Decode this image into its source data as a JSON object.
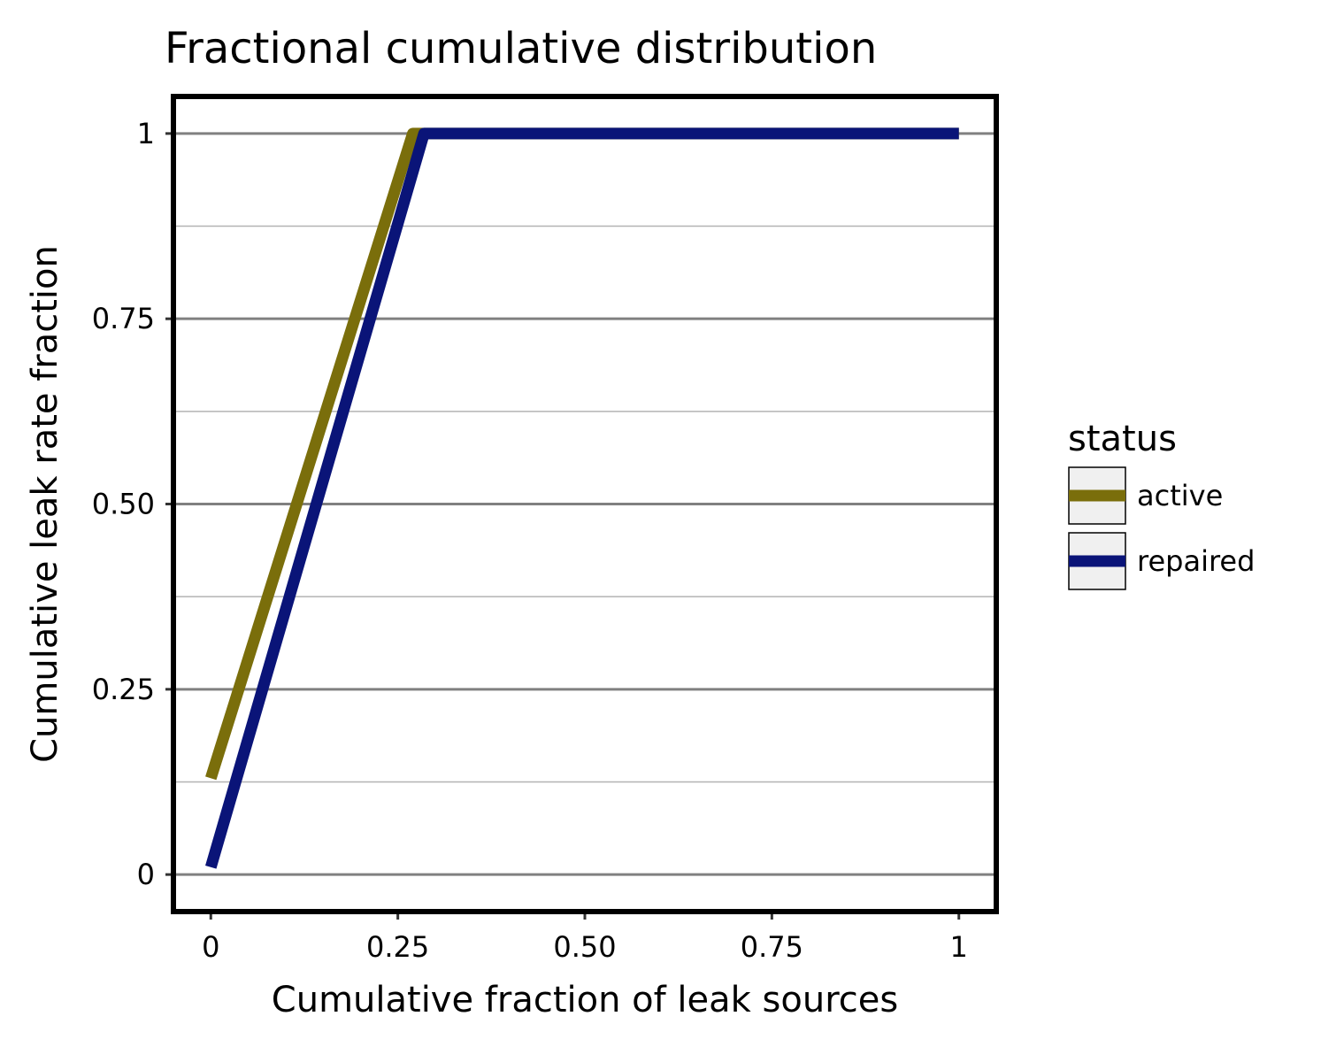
{
  "chart_data": {
    "type": "line",
    "title": "Fractional cumulative distribution",
    "xlabel": "Cumulative fraction of leak sources",
    "ylabel": "Cumulative leak rate fraction",
    "xlim": [
      -0.05,
      1.05
    ],
    "ylim": [
      -0.05,
      1.05
    ],
    "x_ticks": [
      0,
      0.25,
      0.5,
      0.75,
      1
    ],
    "x_tick_labels": [
      "0",
      "0.25",
      "0.50",
      "0.75",
      "1"
    ],
    "y_ticks": [
      0,
      0.25,
      0.5,
      0.75,
      1
    ],
    "y_tick_labels": [
      "0",
      "0.25",
      "0.50",
      "0.75",
      "1"
    ],
    "y_minor_ticks": [
      0.125,
      0.375,
      0.625,
      0.875
    ],
    "grid": "horizontal",
    "legend": {
      "title": "status",
      "placement": "right"
    },
    "series": [
      {
        "name": "active",
        "color": "#7a6e0b",
        "points": [
          [
            0,
            0.13
          ],
          [
            0.27,
            1.0
          ],
          [
            1.0,
            1.0
          ]
        ]
      },
      {
        "name": "repaired",
        "color": "#0a1478",
        "points": [
          [
            0,
            0.01
          ],
          [
            0.285,
            1.0
          ],
          [
            1.0,
            1.0
          ]
        ]
      }
    ]
  },
  "colors": {
    "major_grid": "#808080",
    "minor_grid": "#b3b3b3",
    "panel_border": "#000000",
    "legend_key_fill": "#f0f0f0"
  }
}
